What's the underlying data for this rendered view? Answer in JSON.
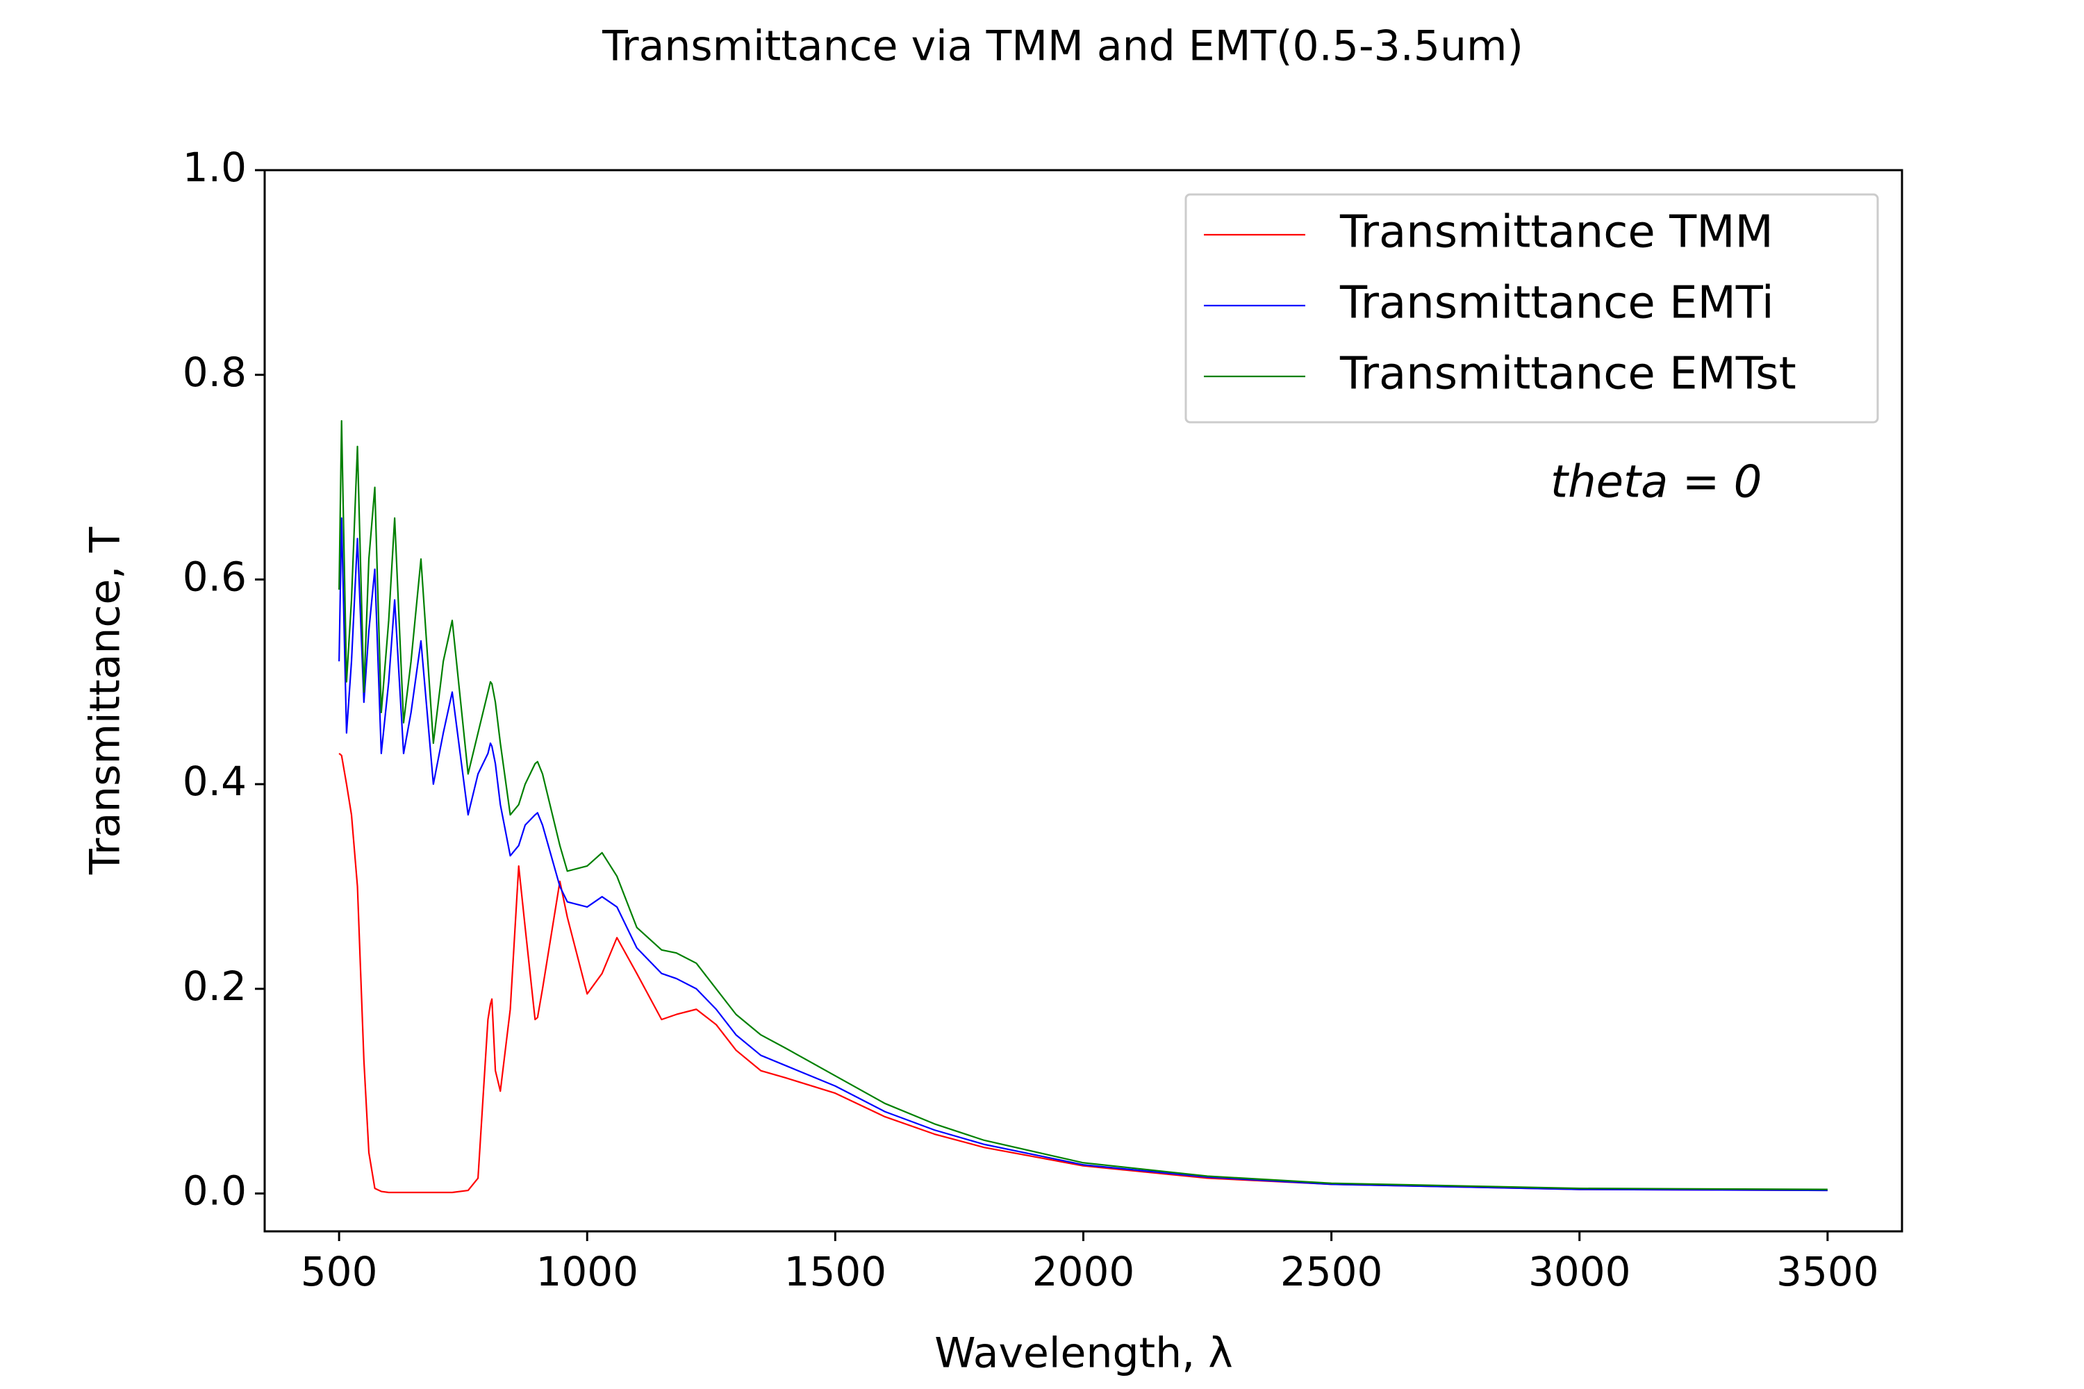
{
  "chart_data": {
    "type": "line",
    "title": "Transmittance via TMM and EMT(0.5-3.5um)",
    "xlabel": "Wavelength, λ",
    "ylabel": "Transmittance, T",
    "annotation": "theta = 0",
    "legend": "upper right",
    "xlim": [
      350,
      3650
    ],
    "ylim": [
      -0.037,
      1.0
    ],
    "xticks": [
      500,
      1000,
      1500,
      2000,
      2500,
      3000,
      3500
    ],
    "yticks": [
      {
        "value": 0,
        "label": "0.0"
      },
      0.2,
      0.4,
      0.6,
      0.8,
      {
        "value": 1,
        "label": "1.0"
      }
    ],
    "x": [
      500,
      505,
      515,
      525,
      537,
      550,
      560,
      572,
      585,
      600,
      612,
      630,
      645,
      665,
      690,
      710,
      728,
      760,
      780,
      800,
      805,
      808,
      815,
      825,
      845,
      862,
      875,
      895,
      900,
      910,
      945,
      960,
      1000,
      1030,
      1060,
      1100,
      1150,
      1180,
      1220,
      1260,
      1300,
      1350,
      1400,
      1500,
      1600,
      1700,
      1800,
      2000,
      2250,
      2500,
      3000,
      3500
    ],
    "series": [
      {
        "name": "Transmittance TMM",
        "color": "#ff0000",
        "values": [
          0.43,
          0.428,
          0.4,
          0.37,
          0.3,
          0.13,
          0.04,
          0.005,
          0.002,
          0.001,
          0.001,
          0.001,
          0.001,
          0.001,
          0.001,
          0.001,
          0.001,
          0.003,
          0.015,
          0.17,
          0.185,
          0.19,
          0.12,
          0.1,
          0.18,
          0.32,
          0.26,
          0.17,
          0.172,
          0.2,
          0.305,
          0.27,
          0.195,
          0.215,
          0.25,
          0.215,
          0.17,
          0.175,
          0.18,
          0.165,
          0.14,
          0.12,
          0.113,
          0.098,
          0.075,
          0.058,
          0.045,
          0.027,
          0.015,
          0.009,
          0.004,
          0.003
        ]
      },
      {
        "name": "Transmittance EMTi",
        "color": "#0000ff",
        "values": [
          0.52,
          0.66,
          0.45,
          0.52,
          0.64,
          0.48,
          0.55,
          0.61,
          0.43,
          0.5,
          0.58,
          0.43,
          0.47,
          0.54,
          0.4,
          0.45,
          0.49,
          0.37,
          0.41,
          0.43,
          0.44,
          0.437,
          0.42,
          0.38,
          0.33,
          0.34,
          0.36,
          0.37,
          0.372,
          0.36,
          0.3,
          0.285,
          0.28,
          0.29,
          0.28,
          0.24,
          0.215,
          0.21,
          0.2,
          0.18,
          0.155,
          0.135,
          0.125,
          0.105,
          0.08,
          0.062,
          0.048,
          0.028,
          0.016,
          0.009,
          0.004,
          0.003
        ]
      },
      {
        "name": "Transmittance EMTst",
        "color": "#008000",
        "values": [
          0.59,
          0.755,
          0.5,
          0.58,
          0.73,
          0.49,
          0.62,
          0.69,
          0.47,
          0.56,
          0.66,
          0.46,
          0.52,
          0.62,
          0.44,
          0.52,
          0.56,
          0.41,
          0.45,
          0.49,
          0.5,
          0.498,
          0.48,
          0.44,
          0.37,
          0.38,
          0.4,
          0.42,
          0.422,
          0.41,
          0.34,
          0.315,
          0.32,
          0.333,
          0.31,
          0.26,
          0.238,
          0.235,
          0.225,
          0.2,
          0.175,
          0.155,
          0.142,
          0.115,
          0.088,
          0.068,
          0.052,
          0.03,
          0.017,
          0.01,
          0.005,
          0.004
        ]
      }
    ]
  }
}
